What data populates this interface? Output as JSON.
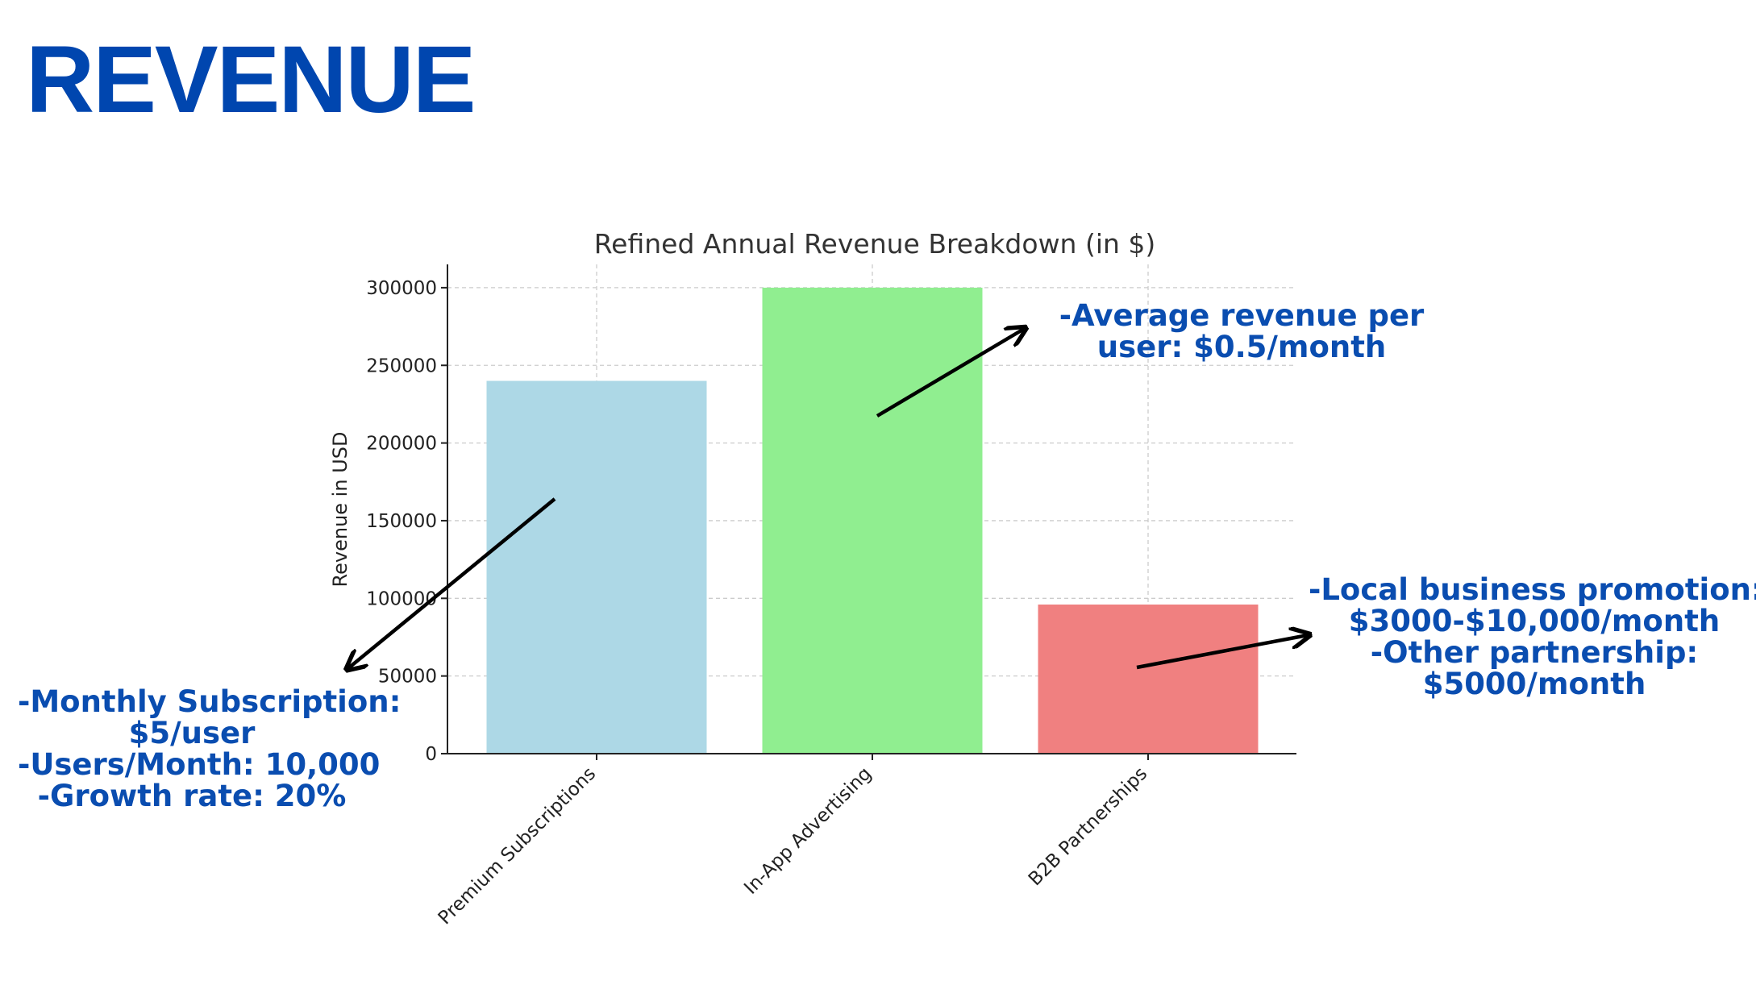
{
  "slide": {
    "title": "REVENUE"
  },
  "colors": {
    "title": "#0046AF",
    "annotation": "#0A4DB0",
    "bars": [
      "#ADD8E6",
      "#90EE90",
      "#F08080"
    ]
  },
  "chart_data": {
    "type": "bar",
    "title": "Refined Annual Revenue Breakdown (in $)",
    "xlabel": "",
    "ylabel": "Revenue in USD",
    "categories": [
      "Premium Subscriptions",
      "In-App Advertising",
      "B2B Partnerships"
    ],
    "values": [
      240000,
      300000,
      96000
    ],
    "ylim": [
      0,
      315000
    ],
    "yticks": [
      0,
      50000,
      100000,
      150000,
      200000,
      250000,
      300000
    ],
    "ytick_labels": [
      "0",
      "50000",
      "100000",
      "150000",
      "200000",
      "250000",
      "300000"
    ],
    "grid": true
  },
  "annotations": [
    {
      "lines": [
        "-Monthly Subscription:",
        "$5/user",
        "-Users/Month: 10,000",
        "-Growth rate: 20%"
      ]
    },
    {
      "lines": [
        "-Average revenue per",
        "user: $0.5/month"
      ]
    },
    {
      "lines": [
        "-Local business promotion:",
        "$3000-$10,000/month",
        "-Other partnership:",
        "$5000/month"
      ]
    }
  ]
}
